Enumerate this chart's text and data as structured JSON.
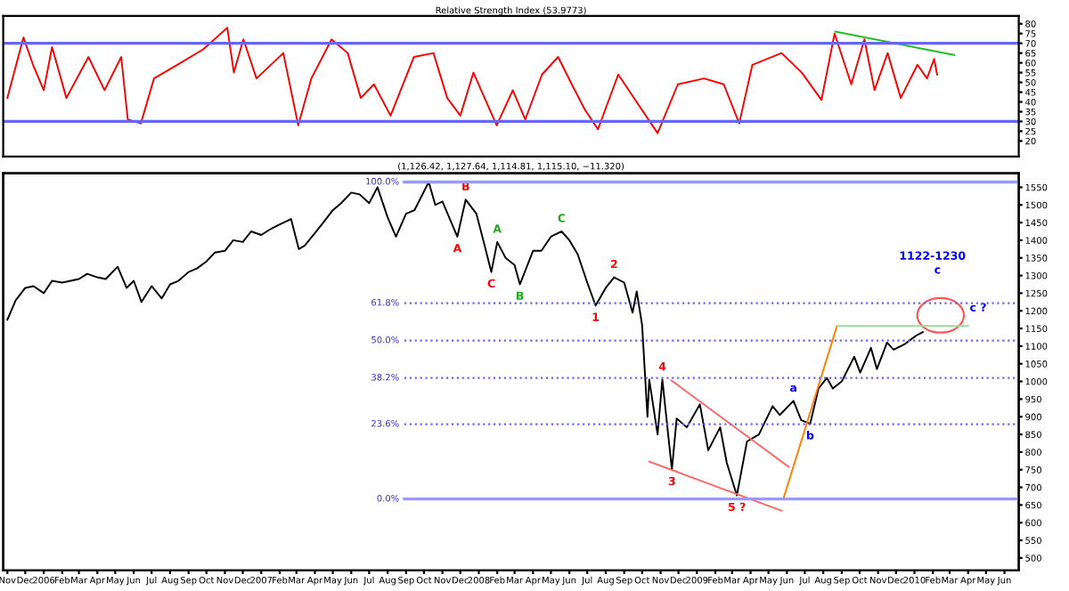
{
  "chart_data": [
    {
      "type": "line",
      "title": "Relative Strength Index (53.9773)",
      "series": [
        {
          "color": "#ff0000",
          "x": [
            "2005-11-01",
            "2005-11-28",
            "2005-12-14",
            "2006-01-01",
            "2006-01-15",
            "2006-02-08",
            "2006-03-17",
            "2006-04-13",
            "2006-05-11",
            "2006-05-22",
            "2006-06-13",
            "2006-07-05",
            "2006-08-13",
            "2006-09-26",
            "2006-11-05",
            "2006-11-16",
            "2006-12-02",
            "2006-12-24",
            "2007-02-07",
            "2007-03-04",
            "2007-03-26",
            "2007-04-29",
            "2007-05-26",
            "2007-06-17",
            "2007-07-09",
            "2007-08-06",
            "2007-09-14",
            "2007-10-17",
            "2007-11-09",
            "2007-12-01",
            "2007-12-23",
            "2008-01-31",
            "2008-02-27",
            "2008-03-19",
            "2008-04-16",
            "2008-05-13",
            "2008-06-05",
            "2008-06-27",
            "2008-07-19",
            "2008-08-22",
            "2008-09-24",
            "2008-10-27",
            "2008-11-30",
            "2009-01-13",
            "2009-02-15",
            "2009-03-13",
            "2009-04-04",
            "2009-05-23",
            "2009-06-26",
            "2009-07-29",
            "2009-08-20",
            "2009-09-17",
            "2009-10-09",
            "2009-10-26",
            "2009-11-17",
            "2009-12-09",
            "2010-01-06",
            "2010-01-22",
            "2010-02-03",
            "2010-02-08"
          ],
          "values": [
            42,
            73,
            59,
            46,
            68,
            42,
            63,
            46,
            63,
            31,
            29,
            52,
            59,
            67,
            78,
            55,
            72,
            52,
            65,
            28,
            52,
            72,
            65,
            42,
            49,
            33,
            63,
            65,
            42,
            33,
            55,
            28,
            46,
            31,
            54,
            63,
            49,
            36,
            26,
            54,
            39,
            24,
            49,
            52,
            49,
            29,
            59,
            65,
            55,
            41,
            75,
            49,
            72,
            46,
            65,
            42,
            59,
            52,
            62,
            54
          ]
        },
        {
          "color": "#22bb22",
          "x": [
            "2009-08-21",
            "2010-03-09"
          ],
          "values": [
            76,
            64
          ]
        }
      ],
      "ref_lines": [
        {
          "axis": "y",
          "value": 70,
          "color": "#6666ff",
          "line_style": "solid"
        },
        {
          "axis": "y",
          "value": 30,
          "color": "#6666ff",
          "line_style": "solid"
        }
      ],
      "xlim": [
        "2005-10-25",
        "2010-06-25"
      ],
      "ylim": [
        12,
        84
      ],
      "yticks": [
        20,
        25,
        30,
        35,
        40,
        45,
        50,
        55,
        60,
        65,
        70,
        75,
        80
      ],
      "tick_labels": "y",
      "grid": false,
      "legend": false,
      "marker": "none"
    },
    {
      "type": "line",
      "title": "(1,126.42, 1,127.64, 1,114.81, 1,115.10, −11.320)",
      "series": [
        {
          "color": "#000000",
          "x": [
            "2005-11-01",
            "2005-11-15",
            "2005-12-01",
            "2005-12-15",
            "2006-01-01",
            "2006-01-15",
            "2006-02-01",
            "2006-02-15",
            "2006-03-01",
            "2006-03-15",
            "2006-04-01",
            "2006-04-15",
            "2006-05-05",
            "2006-05-20",
            "2006-06-01",
            "2006-06-14",
            "2006-07-01",
            "2006-07-18",
            "2006-08-01",
            "2006-08-15",
            "2006-09-01",
            "2006-09-15",
            "2006-10-01",
            "2006-10-15",
            "2006-11-01",
            "2006-11-15",
            "2006-12-01",
            "2006-12-15",
            "2007-01-01",
            "2007-01-15",
            "2007-02-01",
            "2007-02-20",
            "2007-03-05",
            "2007-03-15",
            "2007-04-01",
            "2007-04-15",
            "2007-05-01",
            "2007-05-15",
            "2007-06-01",
            "2007-06-15",
            "2007-07-01",
            "2007-07-15",
            "2007-08-01",
            "2007-08-15",
            "2007-09-01",
            "2007-09-15",
            "2007-10-09",
            "2007-10-20",
            "2007-11-01",
            "2007-11-26",
            "2007-12-10",
            "2007-12-28",
            "2008-01-10",
            "2008-01-22",
            "2008-02-01",
            "2008-02-15",
            "2008-03-01",
            "2008-03-10",
            "2008-04-01",
            "2008-04-15",
            "2008-05-01",
            "2008-05-19",
            "2008-06-01",
            "2008-06-15",
            "2008-07-01",
            "2008-07-15",
            "2008-08-01",
            "2008-08-15",
            "2008-09-01",
            "2008-09-15",
            "2008-09-22",
            "2008-10-01",
            "2008-10-10",
            "2008-10-13",
            "2008-10-27",
            "2008-11-04",
            "2008-11-20",
            "2008-11-28",
            "2008-12-15",
            "2009-01-06",
            "2009-01-20",
            "2009-02-09",
            "2009-02-20",
            "2009-03-09",
            "2009-03-26",
            "2009-04-15",
            "2009-05-08",
            "2009-05-20",
            "2009-06-12",
            "2009-06-25",
            "2009-07-10",
            "2009-07-24",
            "2009-08-07",
            "2009-08-17",
            "2009-09-01",
            "2009-09-22",
            "2009-10-02",
            "2009-10-20",
            "2009-10-30",
            "2009-11-16",
            "2009-11-27",
            "2009-12-15",
            "2010-01-04",
            "2010-01-15"
          ],
          "values": [
            1175,
            1230,
            1265,
            1270,
            1250,
            1285,
            1280,
            1285,
            1290,
            1305,
            1295,
            1290,
            1325,
            1265,
            1285,
            1225,
            1270,
            1235,
            1275,
            1285,
            1310,
            1320,
            1340,
            1365,
            1370,
            1400,
            1395,
            1425,
            1415,
            1430,
            1445,
            1460,
            1375,
            1385,
            1420,
            1450,
            1485,
            1505,
            1535,
            1530,
            1505,
            1550,
            1465,
            1410,
            1475,
            1485,
            1565,
            1500,
            1510,
            1410,
            1515,
            1475,
            1390,
            1310,
            1395,
            1350,
            1330,
            1275,
            1370,
            1370,
            1410,
            1425,
            1400,
            1360,
            1280,
            1215,
            1265,
            1295,
            1280,
            1195,
            1255,
            1160,
            900,
            1005,
            850,
            1005,
            750,
            895,
            870,
            935,
            805,
            870,
            770,
            677,
            830,
            850,
            930,
            905,
            945,
            890,
            880,
            980,
            1010,
            980,
            1000,
            1070,
            1025,
            1095,
            1035,
            1110,
            1090,
            1105,
            1130,
            1140
          ]
        },
        {
          "color": "#ff6666",
          "x": [
            "2008-11-19",
            "2009-06-04"
          ],
          "values": [
            1003,
            758
          ]
        },
        {
          "color": "#ff6666",
          "x": [
            "2008-10-13",
            "2009-05-23"
          ],
          "values": [
            773,
            634
          ]
        },
        {
          "color": "#ff8000",
          "x": [
            "2009-05-26",
            "2009-08-24"
          ],
          "values": [
            667,
            1157
          ]
        },
        {
          "color": "#99dd99",
          "x": [
            "2009-08-24",
            "2010-04-01"
          ],
          "values": [
            1157,
            1157
          ]
        }
      ],
      "ref_lines": [
        {
          "axis": "y2",
          "value": 100,
          "label": "100.0%",
          "color": "#9999ff",
          "line_style": "solid"
        },
        {
          "axis": "y2",
          "value": 61.8,
          "label": "61.8%",
          "color": "#6666ff",
          "line_style": "dotted"
        },
        {
          "axis": "y2",
          "value": 50,
          "label": "50.0%",
          "color": "#6666ff",
          "line_style": "dotted"
        },
        {
          "axis": "y2",
          "value": 38.2,
          "label": "38.2%",
          "color": "#6666ff",
          "line_style": "dotted"
        },
        {
          "axis": "y2",
          "value": 23.6,
          "label": "23.6%",
          "color": "#6666ff",
          "line_style": "dotted"
        },
        {
          "axis": "y2",
          "value": 0,
          "label": "0.0%",
          "color": "#9999ff",
          "line_style": "solid"
        }
      ],
      "y2lim": [
        -22.5,
        102.8
      ],
      "annotations": [
        {
          "text": "B",
          "x": "2007-12-10",
          "y": 1515
        },
        {
          "text": "A",
          "x": "2007-11-26",
          "y": 1410
        },
        {
          "text": "C",
          "x": "2008-01-22",
          "y": 1310
        },
        {
          "text": "A",
          "x": "2008-02-01",
          "y": 1395
        },
        {
          "text": "B",
          "x": "2008-03-10",
          "y": 1275
        },
        {
          "text": "C",
          "x": "2008-05-19",
          "y": 1425
        },
        {
          "text": "1",
          "x": "2008-07-15",
          "y": 1215
        },
        {
          "text": "2",
          "x": "2008-08-15",
          "y": 1295
        },
        {
          "text": "4",
          "x": "2008-11-04",
          "y": 1005
        },
        {
          "text": "3",
          "x": "2008-11-20",
          "y": 750
        },
        {
          "text": "5 ?",
          "x": "2009-03-09",
          "y": 677
        },
        {
          "text": "a",
          "x": "2009-06-12",
          "y": 945
        },
        {
          "text": "b",
          "x": "2009-07-10",
          "y": 880
        },
        "c",
        "c ?",
        "1122-1230"
      ],
      "xlim": [
        "2005-10-25",
        "2010-06-25"
      ],
      "xticks": [
        {
          "value": "2005-11",
          "label": "Nov"
        },
        {
          "value": "2005-12",
          "label": "Dec"
        },
        {
          "value": "2006-01",
          "label": "2006"
        },
        {
          "value": "2006-02",
          "label": "Feb"
        },
        {
          "value": "2006-03",
          "label": "Mar"
        },
        {
          "value": "2006-04",
          "label": "Apr"
        },
        {
          "value": "2006-05",
          "label": "May"
        },
        {
          "value": "2006-06",
          "label": "Jun"
        },
        {
          "value": "2006-07",
          "label": "Jul"
        },
        {
          "value": "2006-08",
          "label": "Aug"
        },
        {
          "value": "2006-09",
          "label": "Sep"
        },
        {
          "value": "2006-10",
          "label": "Oct"
        },
        {
          "value": "2006-11",
          "label": "Nov"
        },
        {
          "value": "2006-12",
          "label": "Dec"
        },
        {
          "value": "2007-01",
          "label": "2007"
        },
        {
          "value": "2007-02",
          "label": "Feb"
        },
        {
          "value": "2007-03",
          "label": "Mar"
        },
        {
          "value": "2007-04",
          "label": "Apr"
        },
        {
          "value": "2007-05",
          "label": "May"
        },
        {
          "value": "2007-06",
          "label": "Jun"
        },
        {
          "value": "2007-07",
          "label": "Jul"
        },
        {
          "value": "2007-08",
          "label": "Aug"
        },
        {
          "value": "2007-09",
          "label": "Sep"
        },
        {
          "value": "2007-10",
          "label": "Oct"
        },
        {
          "value": "2007-11",
          "label": "Nov"
        },
        {
          "value": "2007-12",
          "label": "Dec"
        },
        {
          "value": "2008-01",
          "label": "2008"
        },
        {
          "value": "2008-02",
          "label": "Feb"
        },
        {
          "value": "2008-03",
          "label": "Mar"
        },
        {
          "value": "2008-04",
          "label": "Apr"
        },
        {
          "value": "2008-05",
          "label": "May"
        },
        {
          "value": "2008-06",
          "label": "Jun"
        },
        {
          "value": "2008-07",
          "label": "Jul"
        },
        {
          "value": "2008-08",
          "label": "Aug"
        },
        {
          "value": "2008-09",
          "label": "Sep"
        },
        {
          "value": "2008-10",
          "label": "Oct"
        },
        {
          "value": "2008-11",
          "label": "Nov"
        },
        {
          "value": "2008-12",
          "label": "Dec"
        },
        {
          "value": "2009-01",
          "label": "2009"
        },
        {
          "value": "2009-02",
          "label": "Feb"
        },
        {
          "value": "2009-03",
          "label": "Mar"
        },
        {
          "value": "2009-04",
          "label": "Apr"
        },
        {
          "value": "2009-05",
          "label": "May"
        },
        {
          "value": "2009-06",
          "label": "Jun"
        },
        {
          "value": "2009-07",
          "label": "Jul"
        },
        {
          "value": "2009-08",
          "label": "Aug"
        },
        {
          "value": "2009-09",
          "label": "Sep"
        },
        {
          "value": "2009-10",
          "label": "Oct"
        },
        {
          "value": "2009-11",
          "label": "Nov"
        },
        {
          "value": "2009-12",
          "label": "Dec"
        },
        {
          "value": "2010-01",
          "label": "2010"
        },
        {
          "value": "2010-02",
          "label": "Feb"
        },
        {
          "value": "2010-03",
          "label": "Mar"
        },
        {
          "value": "2010-04",
          "label": "Apr"
        },
        {
          "value": "2010-05",
          "label": "May"
        },
        {
          "value": "2010-06",
          "label": "Jun"
        }
      ],
      "ylim": [
        465,
        1590
      ],
      "yticks": [
        500,
        550,
        600,
        650,
        700,
        750,
        800,
        850,
        900,
        950,
        1000,
        1050,
        1100,
        1150,
        1200,
        1250,
        1300,
        1350,
        1400,
        1450,
        1500,
        1550
      ],
      "grid": false,
      "legend": false,
      "marker": "none"
    }
  ]
}
